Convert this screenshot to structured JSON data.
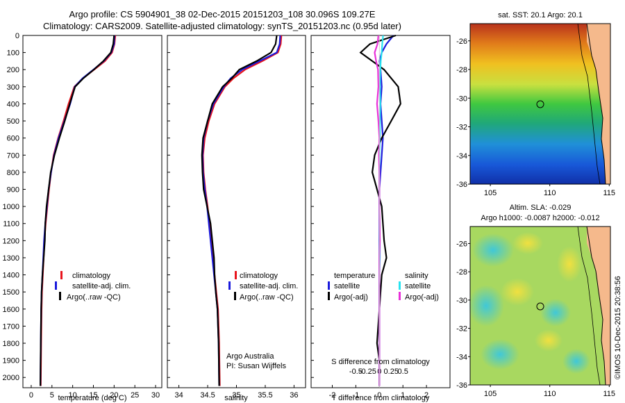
{
  "header": {
    "line1": "Argo profile: CS 5904901_38 02-Dec-2015 20151203_108 30.096S 109.27E",
    "line2": "Climatology: CARS2009. Satellite-adjusted climatology: synTS_20151203.nc (0.95d later)"
  },
  "colors": {
    "climatology": "#e8141c",
    "satellite": "#1a1adc",
    "argo": "#000000",
    "sal_satellite": "#27e3f0",
    "sal_argo": "#e830d8"
  },
  "depth_axis": {
    "ticks": [
      0,
      100,
      200,
      300,
      400,
      500,
      600,
      700,
      800,
      900,
      1000,
      1100,
      1200,
      1300,
      1400,
      1500,
      1600,
      1700,
      1800,
      1900,
      2000
    ],
    "range": [
      0,
      2060
    ]
  },
  "panels": {
    "temperature": {
      "xlabel": "temperature (deg C)",
      "ticks": [
        0,
        5,
        10,
        15,
        20,
        25,
        30
      ],
      "xlim": [
        -2,
        31.5
      ]
    },
    "salinity": {
      "xlabel": "salinity",
      "ticks": [
        "34",
        "34.5",
        "35",
        "35.5",
        "36"
      ],
      "tick_values": [
        34,
        34.5,
        35,
        35.5,
        36
      ],
      "xlim": [
        33.8,
        36.2
      ],
      "note1": "Argo Australia",
      "note2": "PI: Susan Wijffels"
    },
    "difference": {
      "xlabel_bottom": "T difference from climatology",
      "xlabel_top": "S difference from climatology",
      "t_ticks": [
        "-2",
        "-1",
        "0",
        "1",
        "2"
      ],
      "t_tick_values": [
        -2,
        -1,
        0,
        1,
        2
      ],
      "s_ticks": [
        "-0.5",
        "-0.25",
        "0",
        "0.25",
        "0.5"
      ],
      "s_tick_values": [
        -0.5,
        -0.25,
        0,
        0.25,
        0.5
      ],
      "xlim": [
        -2.9,
        3.0
      ]
    }
  },
  "legend_profiles": {
    "climatology": "climatology",
    "satellite": "satellite-adj. clim.",
    "argo": "Argo(..raw -QC)"
  },
  "legend_diff": {
    "temperature": "temperature",
    "salinity": "salinity",
    "satellite": "satellite",
    "argo": "Argo(-adj)"
  },
  "maps": {
    "sst": {
      "title": "sat. SST: 20.1  Argo: 20.1"
    },
    "sla": {
      "title1": "Altim. SLA: -0.029",
      "title2": "Argo h1000: -0.0087 h2000: -0.012"
    },
    "lat_ticks": [
      "-26",
      "-28",
      "-30",
      "-32",
      "-34",
      "-36"
    ],
    "lon_ticks": [
      "105",
      "110",
      "115"
    ],
    "float_position": {
      "lon": 109.27,
      "lat": -30.096
    }
  },
  "footer": {
    "credit": "©IMOS 10-Dec-2015 20:38:56"
  },
  "chart_data": [
    {
      "type": "line",
      "title": "temperature",
      "xlabel": "temperature (deg C)",
      "ylabel": "",
      "xlim": [
        -2,
        31.5
      ],
      "ylim": [
        2060,
        0
      ],
      "series": [
        {
          "name": "climatology",
          "x": [
            20.3,
            20.1,
            19.5,
            17.8,
            15.2,
            12.5,
            10.4,
            9.0,
            7.8,
            6.5,
            5.4,
            4.8,
            4.3,
            3.9,
            3.5,
            3.2,
            3.0,
            2.8,
            2.6,
            2.5,
            2.4,
            2.3
          ],
          "y": [
            0,
            50,
            100,
            150,
            200,
            250,
            300,
            400,
            500,
            600,
            700,
            800,
            900,
            1000,
            1100,
            1200,
            1300,
            1400,
            1500,
            1600,
            1800,
            2050
          ]
        },
        {
          "name": "satellite-adj. clim.",
          "x": [
            20.1,
            20.0,
            19.3,
            17.5,
            15.0,
            12.4,
            10.5,
            9.4,
            8.0,
            6.6,
            5.5,
            4.8,
            4.2,
            3.8,
            3.4,
            3.1,
            2.9,
            2.7,
            2.5,
            2.4,
            2.3,
            2.2
          ],
          "y": [
            0,
            50,
            100,
            150,
            200,
            250,
            300,
            400,
            500,
            600,
            700,
            800,
            900,
            1000,
            1100,
            1200,
            1300,
            1400,
            1500,
            1600,
            1800,
            2050
          ]
        },
        {
          "name": "Argo(..raw -QC)",
          "x": [
            20.0,
            19.8,
            19.2,
            17.4,
            15.1,
            12.6,
            10.6,
            9.3,
            8.1,
            6.8,
            5.6,
            4.7,
            4.2,
            3.7,
            3.4,
            3.3,
            3.0,
            2.7,
            2.5,
            2.4,
            2.3,
            2.2
          ],
          "y": [
            0,
            50,
            100,
            150,
            200,
            250,
            300,
            400,
            500,
            600,
            700,
            800,
            900,
            1000,
            1100,
            1200,
            1300,
            1400,
            1500,
            1600,
            1800,
            2050
          ]
        }
      ]
    },
    {
      "type": "line",
      "title": "salinity",
      "xlabel": "salinity",
      "ylabel": "",
      "xlim": [
        33.8,
        36.2
      ],
      "ylim": [
        2060,
        0
      ],
      "series": [
        {
          "name": "climatology",
          "x": [
            35.78,
            35.77,
            35.72,
            35.45,
            35.15,
            34.95,
            34.8,
            34.62,
            34.52,
            34.45,
            34.42,
            34.43,
            34.46,
            34.5,
            34.53,
            34.56,
            34.59,
            34.62,
            34.65,
            34.68,
            34.7,
            34.71
          ],
          "y": [
            0,
            50,
            100,
            150,
            200,
            250,
            300,
            400,
            500,
            600,
            700,
            800,
            900,
            1000,
            1100,
            1200,
            1300,
            1400,
            1500,
            1600,
            1800,
            2050
          ]
        },
        {
          "name": "satellite-adj. clim.",
          "x": [
            35.76,
            35.75,
            35.7,
            35.4,
            35.1,
            34.9,
            34.78,
            34.6,
            34.5,
            34.43,
            34.41,
            34.42,
            34.45,
            34.49,
            34.52,
            34.55,
            34.58,
            34.61,
            34.64,
            34.67,
            34.69,
            34.7
          ],
          "y": [
            0,
            50,
            100,
            150,
            200,
            250,
            300,
            400,
            500,
            600,
            700,
            800,
            900,
            1000,
            1100,
            1200,
            1300,
            1400,
            1500,
            1600,
            1800,
            2050
          ]
        },
        {
          "name": "Argo(..raw -QC)",
          "x": [
            35.7,
            35.68,
            35.6,
            35.35,
            35.05,
            34.92,
            34.76,
            34.58,
            34.5,
            34.42,
            34.4,
            34.41,
            34.43,
            34.49,
            34.55,
            34.58,
            34.61,
            34.62,
            34.64,
            34.67,
            34.69,
            34.7
          ],
          "y": [
            0,
            50,
            100,
            150,
            200,
            250,
            300,
            400,
            500,
            600,
            700,
            800,
            900,
            1000,
            1100,
            1200,
            1300,
            1400,
            1500,
            1600,
            1800,
            2050
          ]
        }
      ]
    },
    {
      "type": "line",
      "title": "difference from climatology",
      "xlabel": "T difference from climatology",
      "ylabel": "",
      "xlim": [
        -2.9,
        3.0
      ],
      "ylim": [
        2060,
        0
      ],
      "series": [
        {
          "name": "temperature satellite",
          "x": [
            0.6,
            0.3,
            0.1,
            0.0,
            0.05,
            0.1,
            0.05,
            0.1,
            0.15,
            0.1,
            0.05,
            0.0,
            0.0,
            0.0,
            0.0,
            0.0,
            0.0,
            0.0,
            0.0,
            0.0
          ],
          "y": [
            0,
            50,
            100,
            150,
            200,
            300,
            400,
            500,
            600,
            700,
            800,
            900,
            1000,
            1200,
            1300,
            1400,
            1600,
            1800,
            1900,
            2050
          ]
        },
        {
          "name": "temperature Argo(-adj)",
          "x": [
            0.7,
            -0.4,
            -0.8,
            -0.3,
            0.2,
            0.8,
            0.9,
            0.5,
            0.1,
            -0.2,
            -0.3,
            -0.1,
            0.1,
            0.2,
            0.3,
            0.1,
            0.0,
            -0.1,
            0.0,
            0.0
          ],
          "y": [
            0,
            50,
            100,
            150,
            200,
            300,
            400,
            500,
            600,
            700,
            800,
            900,
            1000,
            1200,
            1300,
            1400,
            1600,
            1800,
            1900,
            2050
          ]
        },
        {
          "name": "salinity satellite",
          "x": [
            0.08,
            0.06,
            0.05,
            0.03,
            0.02,
            0.01,
            0.02,
            0.01,
            0.01,
            0.0,
            0.0,
            0.0,
            0.0,
            0.01,
            0.01,
            0.0,
            0.0,
            0.0,
            0.0,
            0.0
          ],
          "y": [
            0,
            50,
            100,
            150,
            200,
            300,
            400,
            500,
            600,
            700,
            800,
            900,
            1000,
            1200,
            1300,
            1400,
            1600,
            1800,
            1900,
            2050
          ]
        },
        {
          "name": "salinity Argo(-adj)",
          "x": [
            -0.02,
            -0.04,
            -0.1,
            -0.07,
            -0.03,
            -0.02,
            -0.05,
            -0.02,
            0.0,
            -0.01,
            0.0,
            0.0,
            0.0,
            0.01,
            0.0,
            0.0,
            0.0,
            0.0,
            0.0,
            0.0
          ],
          "y": [
            0,
            50,
            100,
            150,
            200,
            300,
            400,
            500,
            600,
            700,
            800,
            900,
            1000,
            1200,
            1300,
            1400,
            1600,
            1800,
            1900,
            2050
          ]
        }
      ]
    }
  ]
}
